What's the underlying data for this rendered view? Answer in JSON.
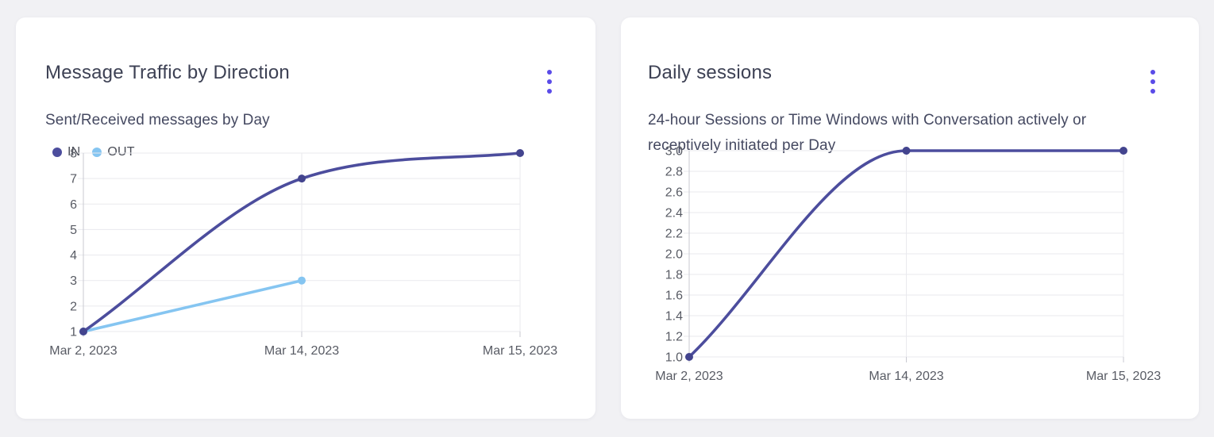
{
  "page": {
    "background": "#f1f1f4"
  },
  "accent_color": "#5a4be8",
  "icons": {
    "card_menu": "kebab-vertical"
  },
  "chart_data": [
    {
      "type": "line",
      "title": "Message Traffic by Direction",
      "subtitle": "Sent/Received messages by Day",
      "categories": [
        "Mar 2, 2023",
        "Mar 14, 2023",
        "Mar 15, 2023"
      ],
      "series": [
        {
          "name": "IN",
          "color": "#4c4d9d",
          "point_color": "#43448e",
          "smooth": true,
          "values": [
            1,
            7,
            8
          ]
        },
        {
          "name": "OUT",
          "color": "#85c5f1",
          "point_color": "#85c5f1",
          "smooth": false,
          "values": [
            1,
            3,
            null
          ]
        }
      ],
      "ylim": [
        1,
        8
      ],
      "yticks": [
        "8",
        "7",
        "6",
        "5",
        "4",
        "3",
        "2",
        "1"
      ],
      "legend": [
        "IN",
        "OUT"
      ],
      "legend_position": "top-left",
      "grid": true
    },
    {
      "type": "line",
      "title": "Daily sessions",
      "subtitle": "24-hour Sessions or Time Windows with Conversation actively or receptively initiated per Day",
      "categories": [
        "Mar 2, 2023",
        "Mar 14, 2023",
        "Mar 15, 2023"
      ],
      "series": [
        {
          "color": "#4c4d9d",
          "point_color": "#43448e",
          "smooth": true,
          "values": [
            1.0,
            3.0,
            3.0
          ]
        }
      ],
      "ylim": [
        1,
        3
      ],
      "yticks": [
        "3.0",
        "2.8",
        "2.6",
        "2.4",
        "2.2",
        "2.0",
        "1.8",
        "1.6",
        "1.4",
        "1.2",
        "1.0"
      ],
      "legend": false,
      "grid": true
    }
  ]
}
